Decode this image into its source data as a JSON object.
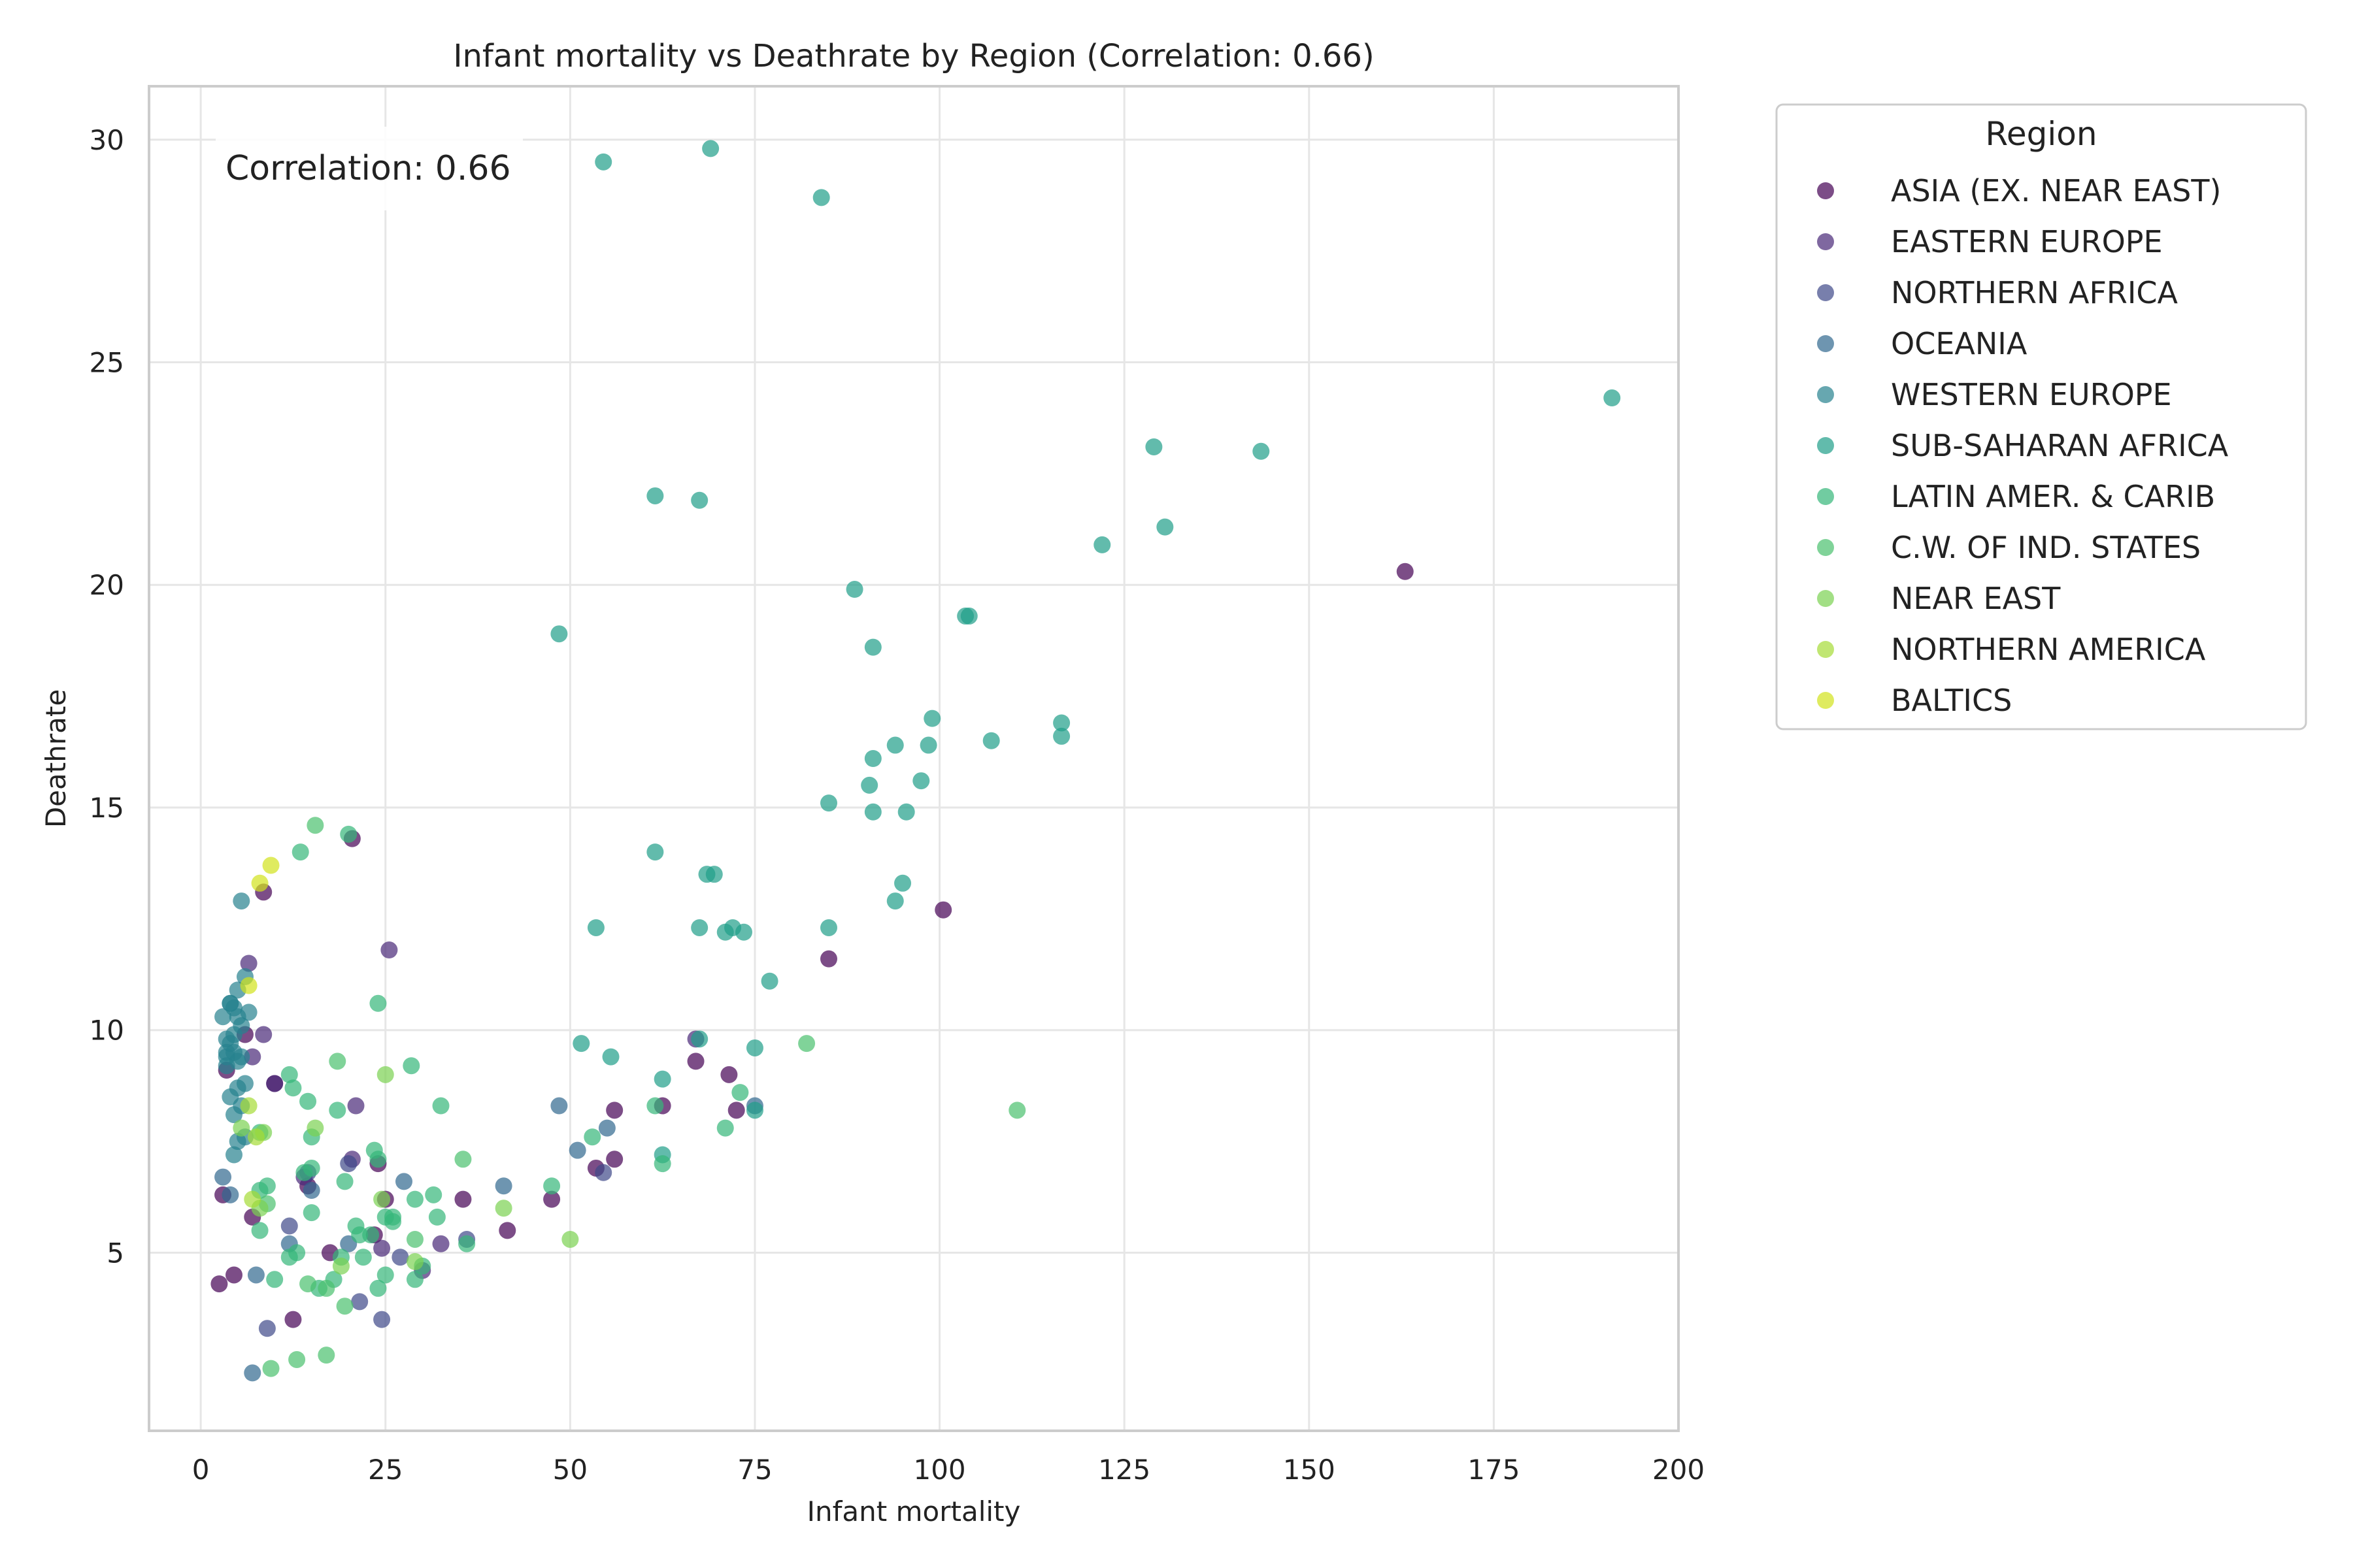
{
  "chart_data": {
    "type": "scatter",
    "title": "Infant mortality vs Deathrate by Region (Correlation: 0.66)",
    "xlabel": "Infant mortality",
    "ylabel": "Deathrate",
    "xlim": [
      -7,
      200
    ],
    "ylim": [
      1,
      31.2
    ],
    "xticks": [
      "0",
      "25",
      "50",
      "75",
      "100",
      "125",
      "150",
      "175",
      "200"
    ],
    "yticks": [
      "5",
      "10",
      "15",
      "20",
      "25",
      "30"
    ],
    "grid": true,
    "annotation": "Correlation: 0.66",
    "legend": {
      "title": "Region",
      "placement": "outside-top-right"
    },
    "series": [
      {
        "name": "ASIA (EX. NEAR EAST)",
        "color": "#440154",
        "points": [
          [
            2.5,
            4.3
          ],
          [
            4.5,
            4.5
          ],
          [
            3,
            6.3
          ],
          [
            3.5,
            9.1
          ],
          [
            6,
            9.9
          ],
          [
            7,
            5.8
          ],
          [
            8.5,
            13.1
          ],
          [
            10,
            8.8
          ],
          [
            12.5,
            3.5
          ],
          [
            14.5,
            6.5
          ],
          [
            17.5,
            5
          ],
          [
            20.5,
            14.3
          ],
          [
            23.5,
            5.4
          ],
          [
            24,
            7
          ],
          [
            25,
            6.2
          ],
          [
            35.5,
            6.2
          ],
          [
            41.5,
            5.5
          ],
          [
            47.5,
            6.2
          ],
          [
            53.5,
            6.9
          ],
          [
            56,
            7.1
          ],
          [
            56,
            8.2
          ],
          [
            62.5,
            8.3
          ],
          [
            67,
            9.3
          ],
          [
            71.5,
            9
          ],
          [
            72.5,
            8.2
          ],
          [
            85,
            11.6
          ],
          [
            100.5,
            12.7
          ],
          [
            163,
            20.3
          ]
        ]
      },
      {
        "name": "EASTERN EUROPE",
        "color": "#482878",
        "points": [
          [
            6.5,
            11.5
          ],
          [
            7,
            9.4
          ],
          [
            8.5,
            9.9
          ],
          [
            10,
            8.8
          ],
          [
            14,
            6.7
          ],
          [
            20.5,
            7.1
          ],
          [
            21,
            8.3
          ],
          [
            25.5,
            11.8
          ],
          [
            24.5,
            5.1
          ],
          [
            30,
            4.6
          ],
          [
            32.5,
            5.2
          ],
          [
            67,
            9.8
          ]
        ]
      },
      {
        "name": "NORTHERN AFRICA",
        "color": "#3e4989",
        "points": [
          [
            9,
            3.3
          ],
          [
            12,
            5.6
          ],
          [
            14.5,
            6.8
          ],
          [
            20,
            7
          ],
          [
            21.5,
            3.9
          ],
          [
            24.5,
            3.5
          ],
          [
            27,
            4.9
          ],
          [
            36,
            5.3
          ],
          [
            54.5,
            6.8
          ]
        ]
      },
      {
        "name": "OCEANIA",
        "color": "#31688e",
        "points": [
          [
            3,
            6.7
          ],
          [
            4,
            6.3
          ],
          [
            7,
            2.3
          ],
          [
            7.5,
            4.5
          ],
          [
            12,
            5.2
          ],
          [
            15,
            6.4
          ],
          [
            20,
            5.2
          ],
          [
            27.5,
            6.6
          ],
          [
            41,
            6.5
          ],
          [
            48.5,
            8.3
          ],
          [
            51,
            7.3
          ],
          [
            55,
            7.8
          ],
          [
            75,
            8.3
          ]
        ]
      },
      {
        "name": "WESTERN EUROPE",
        "color": "#26828e",
        "points": [
          [
            3,
            10.3
          ],
          [
            3.5,
            9.8
          ],
          [
            4,
            10.6
          ],
          [
            4.5,
            10.5
          ],
          [
            5,
            10.3
          ],
          [
            5.5,
            10.1
          ],
          [
            4.5,
            9.5
          ],
          [
            5,
            9.3
          ],
          [
            3.5,
            9.4
          ],
          [
            4,
            8.5
          ],
          [
            5,
            8.7
          ],
          [
            6,
            8.8
          ],
          [
            4.5,
            8.1
          ],
          [
            5.5,
            8.3
          ],
          [
            3.5,
            9.2
          ],
          [
            6.5,
            10.4
          ],
          [
            4,
            9.7
          ],
          [
            5.5,
            9.4
          ],
          [
            6,
            7.6
          ],
          [
            4.5,
            7.2
          ],
          [
            5,
            7.5
          ],
          [
            5.5,
            12.9
          ],
          [
            5,
            10.9
          ],
          [
            6,
            11.2
          ],
          [
            4,
            10.6
          ],
          [
            4.5,
            9.9
          ],
          [
            3.5,
            9.5
          ]
        ]
      },
      {
        "name": "SUB-SAHARAN AFRICA",
        "color": "#1f9e89",
        "points": [
          [
            54.5,
            29.5
          ],
          [
            69,
            29.8
          ],
          [
            84,
            28.7
          ],
          [
            191,
            24.2
          ],
          [
            129,
            23.1
          ],
          [
            143.5,
            23
          ],
          [
            61.5,
            22
          ],
          [
            67.5,
            21.9
          ],
          [
            122,
            20.9
          ],
          [
            130.5,
            21.3
          ],
          [
            88.5,
            19.9
          ],
          [
            103.5,
            19.3
          ],
          [
            104,
            19.3
          ],
          [
            48.5,
            18.9
          ],
          [
            91,
            18.6
          ],
          [
            99,
            17
          ],
          [
            116.5,
            16.9
          ],
          [
            107,
            16.5
          ],
          [
            116.5,
            16.6
          ],
          [
            94,
            16.4
          ],
          [
            98.5,
            16.4
          ],
          [
            91,
            16.1
          ],
          [
            97.5,
            15.6
          ],
          [
            90.5,
            15.5
          ],
          [
            85,
            15.1
          ],
          [
            91,
            14.9
          ],
          [
            95.5,
            14.9
          ],
          [
            61.5,
            14
          ],
          [
            68.5,
            13.5
          ],
          [
            69.5,
            13.5
          ],
          [
            95,
            13.3
          ],
          [
            94,
            12.9
          ],
          [
            53.5,
            12.3
          ],
          [
            67.5,
            12.3
          ],
          [
            71,
            12.2
          ],
          [
            72,
            12.3
          ],
          [
            85,
            12.3
          ],
          [
            73.5,
            12.2
          ],
          [
            77,
            11.1
          ],
          [
            51.5,
            9.7
          ],
          [
            55.5,
            9.4
          ],
          [
            75,
            9.6
          ],
          [
            67.5,
            9.8
          ],
          [
            62.5,
            8.9
          ],
          [
            62.5,
            7.2
          ],
          [
            75,
            8.2
          ]
        ]
      },
      {
        "name": "LATIN AMER. & CARIB",
        "color": "#35b779",
        "points": [
          [
            13.5,
            14
          ],
          [
            20,
            14.4
          ],
          [
            24,
            10.6
          ],
          [
            8,
            7.7
          ],
          [
            12,
            9
          ],
          [
            12.5,
            8.7
          ],
          [
            14.5,
            8.4
          ],
          [
            18.5,
            8.2
          ],
          [
            23.5,
            7.3
          ],
          [
            24,
            7.1
          ],
          [
            28.5,
            9.2
          ],
          [
            32.5,
            8.3
          ],
          [
            15,
            7.6
          ],
          [
            14,
            6.8
          ],
          [
            15,
            6.9
          ],
          [
            19.5,
            6.6
          ],
          [
            26,
            5.8
          ],
          [
            25,
            5.8
          ],
          [
            29,
            6.2
          ],
          [
            31.5,
            6.3
          ],
          [
            32,
            5.8
          ],
          [
            36,
            5.2
          ],
          [
            8,
            6.4
          ],
          [
            9,
            6.5
          ],
          [
            8,
            5.5
          ],
          [
            10,
            4.4
          ],
          [
            12,
            4.9
          ],
          [
            13,
            5
          ],
          [
            15,
            5.9
          ],
          [
            16,
            4.2
          ],
          [
            18,
            4.4
          ],
          [
            19,
            4.9
          ],
          [
            21,
            5.6
          ],
          [
            21.5,
            5.4
          ],
          [
            22,
            4.9
          ],
          [
            23,
            5.4
          ],
          [
            24,
            4.2
          ],
          [
            25,
            4.5
          ],
          [
            26,
            5.7
          ],
          [
            29,
            4.4
          ],
          [
            30,
            4.7
          ],
          [
            47.5,
            6.5
          ],
          [
            53,
            7.6
          ],
          [
            61.5,
            8.3
          ],
          [
            71,
            7.8
          ],
          [
            62.5,
            7
          ],
          [
            73,
            8.6
          ]
        ]
      },
      {
        "name": "C.W. OF IND. STATES",
        "color": "#4ac16d",
        "points": [
          [
            15.5,
            14.6
          ],
          [
            9.5,
            2.4
          ],
          [
            13,
            2.6
          ],
          [
            17,
            2.7
          ],
          [
            14.5,
            4.3
          ],
          [
            19.5,
            3.8
          ],
          [
            29,
            5.3
          ],
          [
            35.5,
            7.1
          ],
          [
            82,
            9.7
          ],
          [
            110.5,
            8.2
          ],
          [
            18.5,
            9.3
          ],
          [
            9,
            6.1
          ],
          [
            17,
            4.2
          ]
        ]
      },
      {
        "name": "NEAR EAST",
        "color": "#7ad151",
        "points": [
          [
            5.5,
            7.8
          ],
          [
            8.5,
            7.7
          ],
          [
            15.5,
            7.8
          ],
          [
            8,
            6
          ],
          [
            25,
            9
          ],
          [
            29,
            4.8
          ],
          [
            41,
            6
          ],
          [
            50,
            5.3
          ],
          [
            24.5,
            6.2
          ],
          [
            19,
            4.7
          ]
        ]
      },
      {
        "name": "NORTHERN AMERICA",
        "color": "#a5db36",
        "points": [
          [
            6.5,
            8.3
          ],
          [
            7,
            6.2
          ],
          [
            7.5,
            7.6
          ]
        ]
      },
      {
        "name": "BALTICS",
        "color": "#d2e21b",
        "points": [
          [
            6.5,
            11
          ],
          [
            8,
            13.3
          ],
          [
            9.5,
            13.7
          ]
        ]
      }
    ]
  }
}
